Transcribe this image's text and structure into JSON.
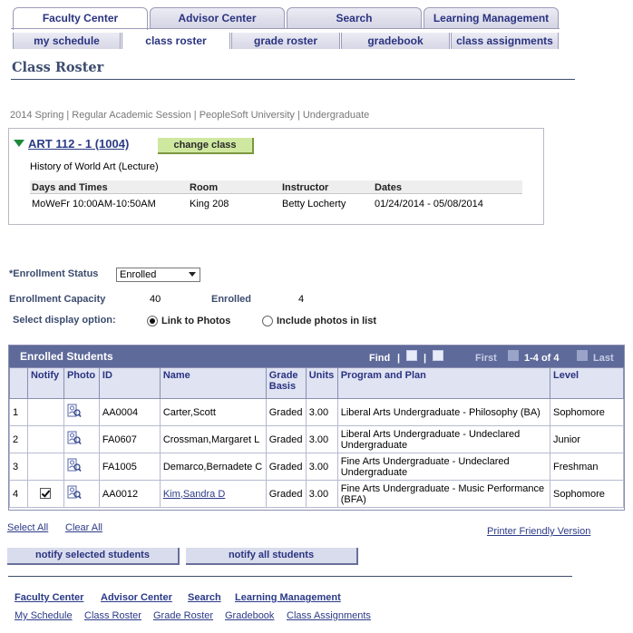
{
  "top_tabs": [
    "Faculty Center",
    "Advisor Center",
    "Search",
    "Learning Management"
  ],
  "sub_tabs": [
    "my schedule",
    "class roster",
    "grade roster",
    "gradebook",
    "class assignments"
  ],
  "page_title": "Class Roster",
  "session": "2014 Spring | Regular Academic Session | PeopleSoft University | Undergraduate",
  "class": {
    "link": "ART 112 - 1 (1004)",
    "change_button": "change class",
    "description": "History of World Art (Lecture)",
    "meeting_headers": [
      "Days and Times",
      "Room",
      "Instructor",
      "Dates"
    ],
    "meeting_values": [
      "MoWeFr 10:00AM-10:50AM",
      "King 208",
      "Betty Locherty",
      "01/24/2014 - 05/08/2014"
    ]
  },
  "filters": {
    "status_label": "*Enrollment Status",
    "status_value": "Enrolled",
    "capacity_label": "Enrollment Capacity",
    "capacity_value": "40",
    "enrolled_label": "Enrolled",
    "enrolled_value": "4",
    "display_label": "Select display option:",
    "option_photos_link": "Link to Photos",
    "option_photos_list": "Include photos in list"
  },
  "grid": {
    "title": "Enrolled Students",
    "find": "Find",
    "first": "First",
    "range": "1-4 of 4",
    "last": "Last",
    "columns": [
      "",
      "Notify",
      "Photo",
      "ID",
      "Name",
      "Grade Basis",
      "Units",
      "Program and Plan",
      "Level"
    ],
    "rows": [
      {
        "num": "1",
        "notify": false,
        "id": "AA0004",
        "name": "Carter,Scott",
        "basis": "Graded",
        "units": "3.00",
        "program": "Liberal Arts Undergraduate - Philosophy (BA)",
        "level": "Sophomore"
      },
      {
        "num": "2",
        "notify": false,
        "id": "FA0607",
        "name": "Crossman,Margaret L",
        "basis": "Graded",
        "units": "3.00",
        "program": "Liberal Arts Undergraduate - Undeclared Undergraduate",
        "level": "Junior"
      },
      {
        "num": "3",
        "notify": false,
        "id": "FA1005",
        "name": "Demarco,Bernadete C",
        "basis": "Graded",
        "units": "3.00",
        "program": "Fine Arts Undergraduate - Undeclared Undergraduate",
        "level": "Freshman"
      },
      {
        "num": "4",
        "notify": true,
        "id": "AA0012",
        "name": "Kim,Sandra D",
        "basis": "Graded",
        "units": "3.00",
        "program": "Fine Arts Undergraduate - Music Performance (BFA)",
        "level": "Sophomore"
      }
    ]
  },
  "actions": {
    "select_all": "Select All",
    "clear_all": "Clear All",
    "printer": "Printer Friendly Version",
    "notify_selected": "notify selected students",
    "notify_all": "notify all students"
  },
  "footer": {
    "top_links": [
      "Faculty Center",
      "Advisor Center",
      "Search",
      "Learning Management"
    ],
    "bottom_links": [
      "My Schedule",
      "Class Roster",
      "Grade Roster",
      "Gradebook",
      "Class Assignments"
    ]
  },
  "colors": {
    "accent": "#2a3380",
    "grid_header": "#5e6a9a",
    "change_button": "#cfe8a0"
  }
}
